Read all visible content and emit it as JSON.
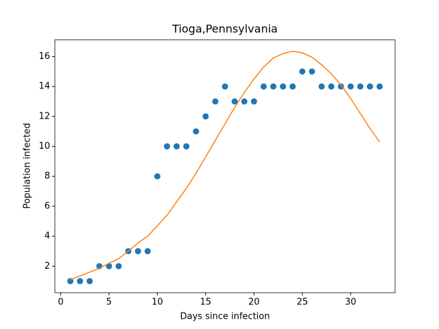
{
  "chart_data": {
    "type": "scatter",
    "title": "Tioga,Pennsylvania",
    "x_label": "Days since infection",
    "y_label": "Population infected",
    "x": [
      1,
      2,
      3,
      4,
      5,
      6,
      7,
      8,
      9,
      10,
      11,
      12,
      13,
      14,
      15,
      16,
      17,
      18,
      19,
      20,
      21,
      22,
      23,
      24,
      25,
      26,
      27,
      28,
      29,
      30,
      31,
      32,
      33
    ],
    "series": [
      {
        "type": "scatter",
        "color": "#1f77b4",
        "values": [
          1,
          1,
          1,
          2,
          2,
          2,
          3,
          3,
          3,
          8,
          10,
          10,
          10,
          11,
          12,
          13,
          14,
          13,
          13,
          13,
          14,
          14,
          14,
          14,
          15,
          15,
          14,
          14,
          14,
          14,
          14,
          14,
          14
        ]
      },
      {
        "type": "line",
        "color": "#ff7f0e",
        "values": [
          1.1,
          1.35,
          1.6,
          1.85,
          2.2,
          2.5,
          3.0,
          3.55,
          4.0,
          4.7,
          5.4,
          6.3,
          7.2,
          8.2,
          9.3,
          10.4,
          11.5,
          12.6,
          13.6,
          14.5,
          15.3,
          15.9,
          16.2,
          16.35,
          16.25,
          15.95,
          15.45,
          14.85,
          14.1,
          13.2,
          12.2,
          11.2,
          10.3
        ]
      }
    ],
    "xlim": [
      -0.6,
      34.6
    ],
    "ylim": [
      0.23,
      17.12
    ],
    "xticks": [
      0,
      5,
      10,
      15,
      20,
      25,
      30
    ],
    "yticks": [
      2,
      4,
      6,
      8,
      10,
      12,
      14,
      16
    ],
    "grid": false
  }
}
